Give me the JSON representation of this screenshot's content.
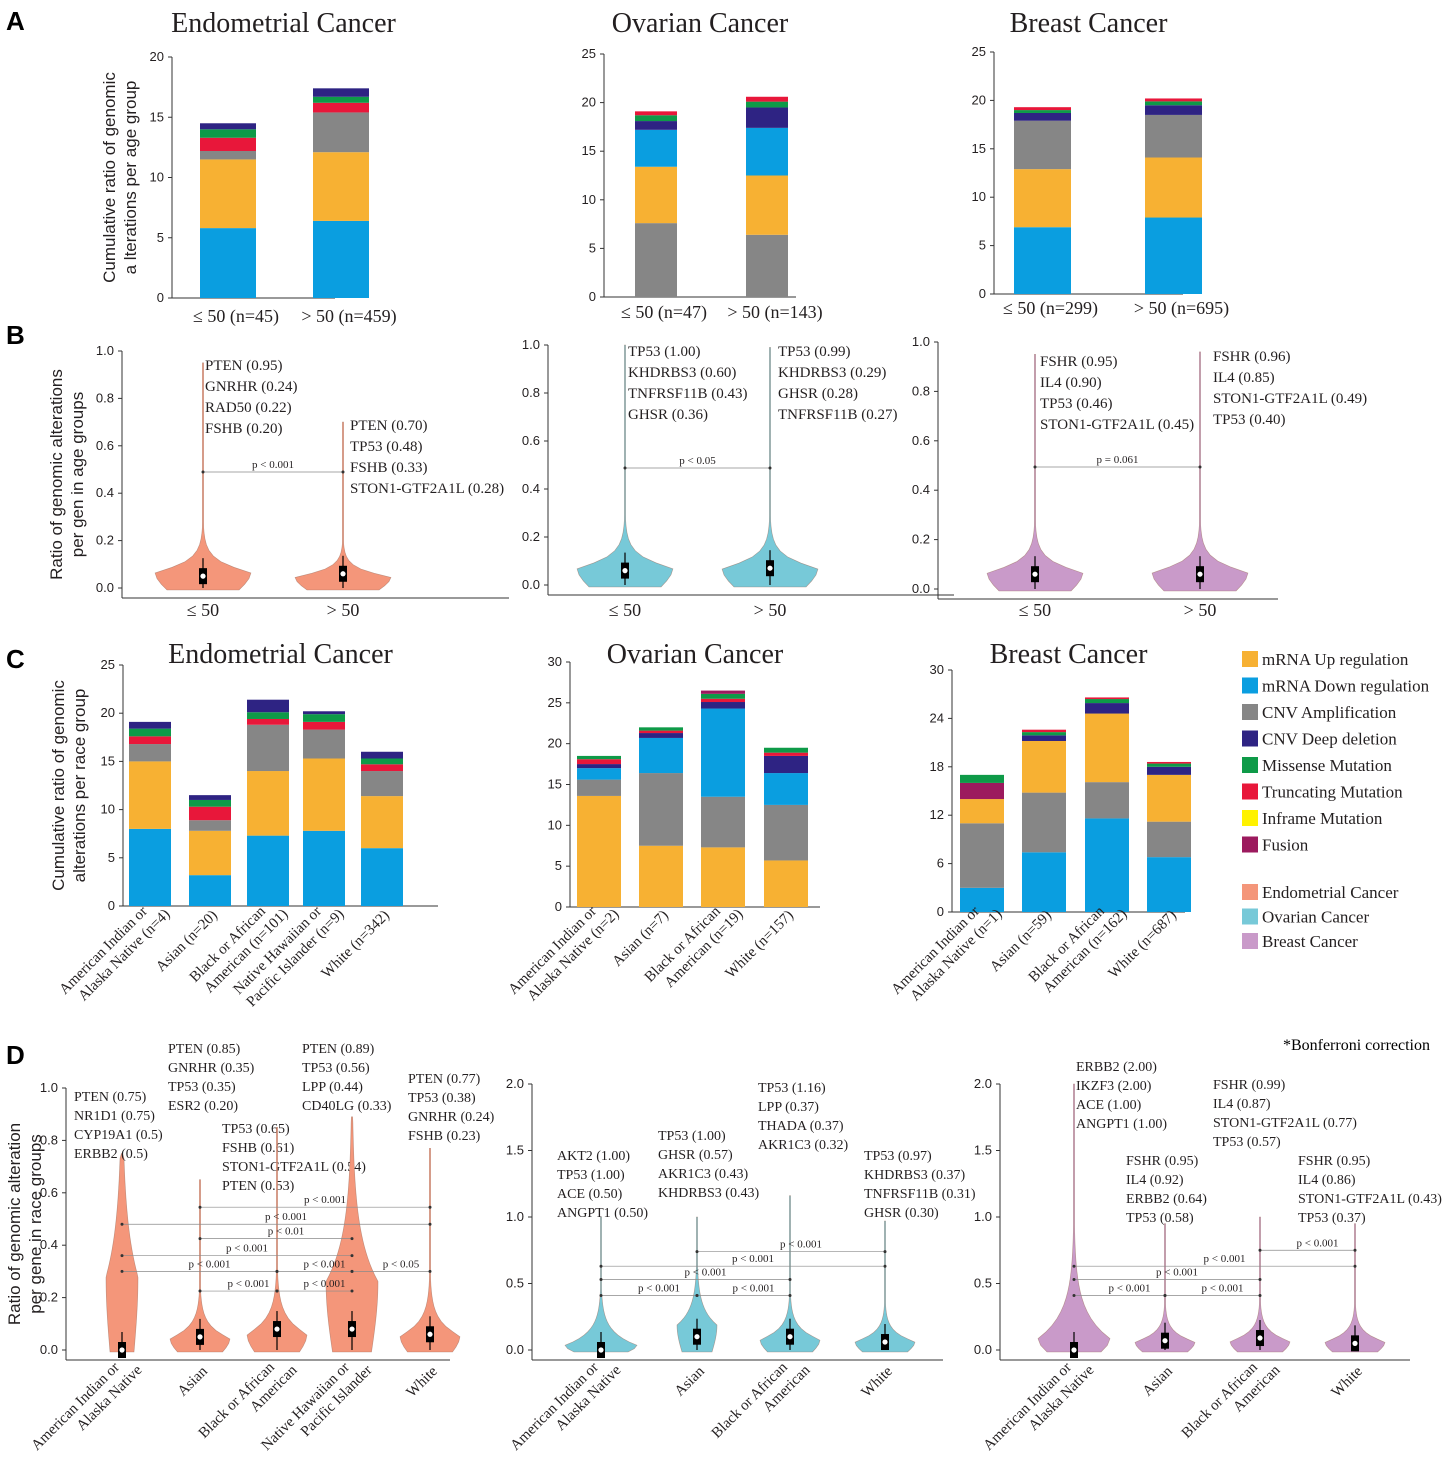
{
  "colors": {
    "mrna_up": "#f7b133",
    "mrna_down": "#0a9ee0",
    "cnv_amp": "#868686",
    "cnv_del": "#2e2383",
    "missense": "#0e9a48",
    "truncating": "#e8173a",
    "inframe": "#fff200",
    "fusion": "#9c1a5e",
    "endometrial": "#f4967a",
    "ovarian": "#77c9d8",
    "breast": "#c99ac9"
  },
  "legend": {
    "alterations": [
      {
        "label": "mRNA Up regulation",
        "color_key": "mrna_up"
      },
      {
        "label": "mRNA Down regulation",
        "color_key": "mrna_down"
      },
      {
        "label": "CNV Amplification",
        "color_key": "cnv_amp"
      },
      {
        "label": "CNV Deep deletion",
        "color_key": "cnv_del"
      },
      {
        "label": "Missense Mutation",
        "color_key": "missense"
      },
      {
        "label": "Truncating Mutation",
        "color_key": "truncating"
      },
      {
        "label": "Inframe Mutation",
        "color_key": "inframe"
      },
      {
        "label": "Fusion",
        "color_key": "fusion"
      }
    ],
    "cancers": [
      {
        "label": "Endometrial Cancer",
        "color_key": "endometrial"
      },
      {
        "label": "Ovarian Cancer",
        "color_key": "ovarian"
      },
      {
        "label": "Breast Cancer",
        "color_key": "breast"
      }
    ]
  },
  "footnote": "*Bonferroni correction",
  "chart_data": [
    {
      "type": "bar",
      "panel": "A",
      "title": "Endometrial Cancer",
      "ylabel": "Cumulative ratio of genomic a lterations per age group",
      "ylim": [
        0,
        20
      ],
      "yticks": [
        0,
        5,
        10,
        15,
        20
      ],
      "categories": [
        "≤ 50 (n=45)",
        "> 50 (n=459)"
      ],
      "series": [
        {
          "name": "mRNA Down regulation",
          "color_key": "mrna_down",
          "values": [
            5.8,
            6.4
          ]
        },
        {
          "name": "mRNA Up regulation",
          "color_key": "mrna_up",
          "values": [
            5.7,
            5.7
          ]
        },
        {
          "name": "CNV Amplification",
          "color_key": "cnv_amp",
          "values": [
            0.7,
            3.3
          ]
        },
        {
          "name": "Truncating Mutation",
          "color_key": "truncating",
          "values": [
            1.1,
            0.8
          ]
        },
        {
          "name": "Missense Mutation",
          "color_key": "missense",
          "values": [
            0.7,
            0.5
          ]
        },
        {
          "name": "CNV Deep deletion",
          "color_key": "cnv_del",
          "values": [
            0.5,
            0.7
          ]
        }
      ]
    },
    {
      "type": "bar",
      "panel": "A",
      "title": "Ovarian Cancer",
      "ylim": [
        0,
        25
      ],
      "yticks": [
        0,
        5,
        10,
        15,
        20,
        25
      ],
      "categories": [
        "≤ 50 (n=47)",
        "> 50 (n=143)"
      ],
      "series": [
        {
          "name": "CNV Amplification",
          "color_key": "cnv_amp",
          "values": [
            7.6,
            6.4
          ]
        },
        {
          "name": "mRNA Up regulation",
          "color_key": "mrna_up",
          "values": [
            5.8,
            6.1
          ]
        },
        {
          "name": "mRNA Down regulation",
          "color_key": "mrna_down",
          "values": [
            3.8,
            4.9
          ]
        },
        {
          "name": "CNV Deep deletion",
          "color_key": "cnv_del",
          "values": [
            0.9,
            2.1
          ]
        },
        {
          "name": "Missense Mutation",
          "color_key": "missense",
          "values": [
            0.6,
            0.6
          ]
        },
        {
          "name": "Truncating Mutation",
          "color_key": "truncating",
          "values": [
            0.4,
            0.5
          ]
        }
      ]
    },
    {
      "type": "bar",
      "panel": "A",
      "title": "Breast Cancer",
      "ylim": [
        0,
        25
      ],
      "yticks": [
        0,
        5,
        10,
        15,
        20,
        25
      ],
      "categories": [
        "≤ 50 (n=299)",
        "> 50 (n=695)"
      ],
      "series": [
        {
          "name": "mRNA Down regulation",
          "color_key": "mrna_down",
          "values": [
            6.9,
            7.9
          ]
        },
        {
          "name": "mRNA Up regulation",
          "color_key": "mrna_up",
          "values": [
            6.0,
            6.2
          ]
        },
        {
          "name": "CNV Amplification",
          "color_key": "cnv_amp",
          "values": [
            5.0,
            4.4
          ]
        },
        {
          "name": "CNV Deep deletion",
          "color_key": "cnv_del",
          "values": [
            0.8,
            1.0
          ]
        },
        {
          "name": "Missense Mutation",
          "color_key": "missense",
          "values": [
            0.3,
            0.4
          ]
        },
        {
          "name": "Truncating Mutation",
          "color_key": "truncating",
          "values": [
            0.3,
            0.3
          ]
        }
      ]
    },
    {
      "type": "violin",
      "panel": "B",
      "cancer": "endometrial",
      "ylabel": "Ratio of genomic alterations per gen in age groups",
      "ylim": [
        0,
        1
      ],
      "yticks": [
        "0.0",
        "0.2",
        "0.4",
        "0.6",
        "0.8",
        "1.0"
      ],
      "ytick_values": [
        0,
        0.2,
        0.4,
        0.6,
        0.8,
        1.0
      ],
      "categories": [
        "≤ 50",
        "> 50"
      ],
      "medians": [
        0.05,
        0.06
      ],
      "maxima": [
        0.95,
        0.7
      ],
      "annotations": [
        [
          "PTEN (0.95)",
          "GNRHR (0.24)",
          "RAD50 (0.22)",
          "FSHB (0.20)"
        ],
        [
          "PTEN (0.70)",
          "TP53 (0.48)",
          "FSHB (0.33)",
          "STON1-GTF2A1L (0.28)"
        ]
      ],
      "comparisons": [
        {
          "from": 0,
          "to": 1,
          "label": "p < 0.001",
          "y": 0.48
        }
      ]
    },
    {
      "type": "violin",
      "panel": "B",
      "cancer": "ovarian",
      "ylim": [
        0,
        1
      ],
      "yticks": [
        "0.0",
        "0.2",
        "0.4",
        "0.6",
        "0.8",
        "1.0"
      ],
      "ytick_values": [
        0,
        0.2,
        0.4,
        0.6,
        0.8,
        1.0
      ],
      "categories": [
        "≤ 50",
        "> 50"
      ],
      "medians": [
        0.06,
        0.07
      ],
      "maxima": [
        1.0,
        0.99
      ],
      "annotations": [
        [
          "TP53 (1.00)",
          "KHDRBS3 (0.60)",
          "TNFRSF11B (0.43)",
          "GHSR (0.36)"
        ],
        [
          "TP53 (0.99)",
          "KHDRBS3 (0.29)",
          "GHSR (0.28)",
          "TNFRSF11B (0.27)"
        ]
      ],
      "comparisons": [
        {
          "from": 0,
          "to": 1,
          "label": "p < 0.05",
          "y": 0.5
        }
      ]
    },
    {
      "type": "violin",
      "panel": "B",
      "cancer": "breast",
      "ylim": [
        0,
        1
      ],
      "yticks": [
        "0.0",
        "0.2",
        "0.4",
        "0.6",
        "0.8",
        "1.0"
      ],
      "ytick_values": [
        0,
        0.2,
        0.4,
        0.6,
        0.8,
        1.0
      ],
      "categories": [
        "≤ 50",
        "> 50"
      ],
      "medians": [
        0.06,
        0.06
      ],
      "maxima": [
        0.95,
        0.96
      ],
      "annotations": [
        [
          "FSHR (0.95)",
          "IL4 (0.90)",
          "TP53 (0.46)",
          "STON1-GTF2A1L (0.45)"
        ],
        [
          "FSHR (0.96)",
          "IL4 (0.85)",
          "STON1-GTF2A1L (0.49)",
          "TP53 (0.40)"
        ]
      ],
      "comparisons": [
        {
          "from": 0,
          "to": 1,
          "label": "p = 0.061",
          "y": 0.5
        }
      ]
    },
    {
      "type": "bar",
      "panel": "C",
      "title": "Endometrial Cancer",
      "ylabel": "Cumulative ratio of genomic alterations per race group",
      "ylim": [
        0,
        25
      ],
      "yticks": [
        0,
        5,
        10,
        15,
        20,
        25
      ],
      "categories": [
        "American Indian or Alaska Native (n=4)",
        "Asian (n=20)",
        "Black or African American (n=101)",
        "Native Hawaiian or Pacific Islander (n=9)",
        "White (n=342)"
      ],
      "series": [
        {
          "name": "mRNA Down regulation",
          "color_key": "mrna_down",
          "values": [
            8.0,
            3.2,
            7.3,
            7.8,
            6.0
          ]
        },
        {
          "name": "mRNA Up regulation",
          "color_key": "mrna_up",
          "values": [
            7.0,
            4.6,
            6.7,
            7.5,
            5.4
          ]
        },
        {
          "name": "CNV Amplification",
          "color_key": "cnv_amp",
          "values": [
            1.8,
            1.1,
            4.8,
            3.0,
            2.6
          ]
        },
        {
          "name": "Truncating Mutation",
          "color_key": "truncating",
          "values": [
            0.8,
            1.4,
            0.6,
            0.8,
            0.7
          ]
        },
        {
          "name": "Missense Mutation",
          "color_key": "missense",
          "values": [
            0.8,
            0.7,
            0.7,
            0.8,
            0.6
          ]
        },
        {
          "name": "CNV Deep deletion",
          "color_key": "cnv_del",
          "values": [
            0.7,
            0.5,
            1.3,
            0.3,
            0.7
          ]
        },
        {
          "name": "Fusion",
          "color_key": "fusion",
          "values": [
            0,
            0,
            0,
            0,
            0
          ]
        }
      ]
    },
    {
      "type": "bar",
      "panel": "C",
      "title": "Ovarian Cancer",
      "ylim": [
        0,
        30
      ],
      "yticks": [
        0,
        5,
        10,
        15,
        20,
        25,
        30
      ],
      "categories": [
        "American Indian or Alaska Native (n=2)",
        "Asian (n=7)",
        "Black or African American (n=19)",
        "White (n=157)"
      ],
      "series": [
        {
          "name": "mRNA Up regulation",
          "color_key": "mrna_up",
          "values": [
            13.6,
            7.5,
            7.3,
            5.7
          ]
        },
        {
          "name": "CNV Amplification",
          "color_key": "cnv_amp",
          "values": [
            2.0,
            8.9,
            6.2,
            6.8
          ]
        },
        {
          "name": "mRNA Down regulation",
          "color_key": "mrna_down",
          "values": [
            1.4,
            4.3,
            10.8,
            3.9
          ]
        },
        {
          "name": "CNV Deep deletion",
          "color_key": "cnv_del",
          "values": [
            0.5,
            0.6,
            0.8,
            2.1
          ]
        },
        {
          "name": "Truncating Mutation",
          "color_key": "truncating",
          "values": [
            0.6,
            0.3,
            0.4,
            0.4
          ]
        },
        {
          "name": "Missense Mutation",
          "color_key": "missense",
          "values": [
            0.4,
            0.4,
            0.6,
            0.6
          ]
        },
        {
          "name": "Fusion",
          "color_key": "fusion",
          "values": [
            0,
            0,
            0.4,
            0
          ]
        }
      ]
    },
    {
      "type": "bar",
      "panel": "C",
      "title": "Breast Cancer",
      "ylim": [
        0,
        30
      ],
      "yticks": [
        0,
        6,
        12,
        18,
        24,
        30
      ],
      "categories": [
        "American Indian or Alaska Native (n=1)",
        "Asian (n=59)",
        "Black or African American (n=162)",
        "White (n=687)"
      ],
      "series": [
        {
          "name": "mRNA Down regulation",
          "color_key": "mrna_down",
          "values": [
            3.0,
            7.4,
            11.6,
            6.8
          ]
        },
        {
          "name": "CNV Amplification",
          "color_key": "cnv_amp",
          "values": [
            8.0,
            7.4,
            4.5,
            4.4
          ]
        },
        {
          "name": "mRNA Up regulation",
          "color_key": "mrna_up",
          "values": [
            3.0,
            6.4,
            8.5,
            5.8
          ]
        },
        {
          "name": "Fusion",
          "color_key": "fusion",
          "values": [
            2.0,
            0,
            0,
            0
          ]
        },
        {
          "name": "CNV Deep deletion",
          "color_key": "cnv_del",
          "values": [
            0,
            0.7,
            1.3,
            1.0
          ]
        },
        {
          "name": "Missense Mutation",
          "color_key": "missense",
          "values": [
            1.0,
            0.4,
            0.5,
            0.4
          ]
        },
        {
          "name": "Truncating Mutation",
          "color_key": "truncating",
          "values": [
            0,
            0.3,
            0.2,
            0.2
          ]
        }
      ]
    },
    {
      "type": "violin",
      "panel": "D",
      "cancer": "endometrial",
      "ylabel": "Ratio of genomic alteration per gene in race groups",
      "ylim": [
        0,
        1
      ],
      "yticks": [
        "0.0",
        "0.2",
        "0.4",
        "0.6",
        "0.8",
        "1.0"
      ],
      "ytick_values": [
        0,
        0.2,
        0.4,
        0.6,
        0.8,
        1.0
      ],
      "categories": [
        "American Indian or Alaska Native",
        "Asian",
        "Black or African American",
        "Native Hawaiian or Pacific Islander",
        "White"
      ],
      "medians": [
        0,
        0.05,
        0.08,
        0.08,
        0.06
      ],
      "maxima": [
        0.75,
        0.65,
        0.85,
        0.89,
        0.77
      ],
      "annotations": [
        [
          "PTEN (0.75)",
          "NR1D1 (0.75)",
          "CYP19A1 (0.5)",
          "ERBB2 (0.5)"
        ],
        [
          "TP53 (0.65)",
          "FSHB (0.61)",
          "STON1-GTF2A1L (0.54)",
          "PTEN (0.53)"
        ],
        [
          "PTEN (0.85)",
          "GNRHR (0.35)",
          "TP53 (0.35)",
          "ESR2 (0.20)"
        ],
        [
          "PTEN (0.89)",
          "TP53 (0.56)",
          "LPP (0.44)",
          "CD40LG (0.33)"
        ],
        [
          "PTEN (0.77)",
          "TP53 (0.38)",
          "GNRHR (0.24)",
          "FSHB (0.23)"
        ]
      ],
      "comparisons": [
        {
          "from": 1,
          "to": 4,
          "label": "p < 0.001",
          "y": 0.545
        },
        {
          "from": 0,
          "to": 4,
          "label": "p < 0.001",
          "y": 0.48
        },
        {
          "from": 1,
          "to": 3,
          "label": "p < 0.01",
          "y": 0.425
        },
        {
          "from": 0,
          "to": 3,
          "label": "p < 0.001",
          "y": 0.36
        },
        {
          "from": 0,
          "to": 2,
          "label": "p < 0.001",
          "y": 0.3
        },
        {
          "from": 1,
          "to": 2,
          "label": "p < 0.001",
          "y": 0.225
        },
        {
          "from": 2,
          "to": 3,
          "label": "p < 0.001",
          "y": 0.225
        },
        {
          "from": 2,
          "to": 3,
          "label": "p < 0.001",
          "y": 0.3
        },
        {
          "from": 3,
          "to": 4,
          "label": "p < 0.05",
          "y": 0.3
        }
      ]
    },
    {
      "type": "violin",
      "panel": "D",
      "cancer": "ovarian",
      "ylim": [
        0,
        2
      ],
      "yticks": [
        "0.0",
        "0.5",
        "1.0",
        "1.5",
        "2.0"
      ],
      "ytick_values": [
        0,
        0.5,
        1.0,
        1.5,
        2.0
      ],
      "categories": [
        "American Indian or Alaska Native",
        "Asian",
        "Black or African American",
        "White"
      ],
      "medians": [
        0,
        0.1,
        0.1,
        0.06
      ],
      "maxima": [
        1.0,
        1.0,
        1.16,
        0.97
      ],
      "annotations": [
        [
          "AKT2 (1.00)",
          "TP53 (1.00)",
          "ACE (0.50)",
          "ANGPT1 (0.50)"
        ],
        [
          "TP53 (1.00)",
          "GHSR (0.57)",
          "AKR1C3 (0.43)",
          "KHDRBS3 (0.43)"
        ],
        [
          "TP53 (1.16)",
          "LPP (0.37)",
          "THADA (0.37)",
          "AKR1C3 (0.32)"
        ],
        [
          "TP53 (0.97)",
          "KHDRBS3 (0.37)",
          "TNFRSF11B (0.31)",
          "GHSR (0.30)"
        ]
      ],
      "comparisons": [
        {
          "from": 1,
          "to": 3,
          "label": "p < 0.001",
          "y": 0.74
        },
        {
          "from": 0,
          "to": 3,
          "label": "p < 0.001",
          "y": 0.63
        },
        {
          "from": 0,
          "to": 2,
          "label": "p < 0.001",
          "y": 0.53
        },
        {
          "from": 0,
          "to": 1,
          "label": "p < 0.001",
          "y": 0.41
        },
        {
          "from": 1,
          "to": 2,
          "label": "p < 0.001",
          "y": 0.41
        }
      ]
    },
    {
      "type": "violin",
      "panel": "D",
      "cancer": "breast",
      "ylim": [
        0,
        2
      ],
      "yticks": [
        "0.0",
        "0.5",
        "1.0",
        "1.5",
        "2.0"
      ],
      "ytick_values": [
        0,
        0.5,
        1.0,
        1.5,
        2.0
      ],
      "categories": [
        "American Indian or Alaska Native",
        "Asian",
        "Black or African American",
        "White"
      ],
      "medians": [
        0,
        0.07,
        0.09,
        0.05
      ],
      "maxima": [
        2.0,
        0.95,
        1.0,
        0.95
      ],
      "annotations": [
        [
          "ERBB2 (2.00)",
          "IKZF3 (2.00)",
          "ACE (1.00)",
          "ANGPT1 (1.00)"
        ],
        [
          "FSHR (0.95)",
          "IL4 (0.92)",
          "ERBB2 (0.64)",
          "TP53 (0.58)"
        ],
        [
          "FSHR (0.99)",
          "IL4 (0.87)",
          "STON1-GTF2A1L (0.77)",
          "TP53 (0.57)"
        ],
        [
          "FSHR (0.95)",
          "IL4 (0.86)",
          "STON1-GTF2A1L (0.43)",
          "TP53 (0.37)"
        ]
      ],
      "comparisons": [
        {
          "from": 2,
          "to": 3,
          "label": "p < 0.001",
          "y": 0.75
        },
        {
          "from": 0,
          "to": 3,
          "label": "p < 0.001",
          "y": 0.63
        },
        {
          "from": 0,
          "to": 2,
          "label": "p < 0.001",
          "y": 0.53
        },
        {
          "from": 0,
          "to": 1,
          "label": "p < 0.001",
          "y": 0.41
        },
        {
          "from": 1,
          "to": 2,
          "label": "p < 0.001",
          "y": 0.41
        }
      ]
    }
  ],
  "panel_letters": [
    "A",
    "B",
    "C",
    "D"
  ]
}
